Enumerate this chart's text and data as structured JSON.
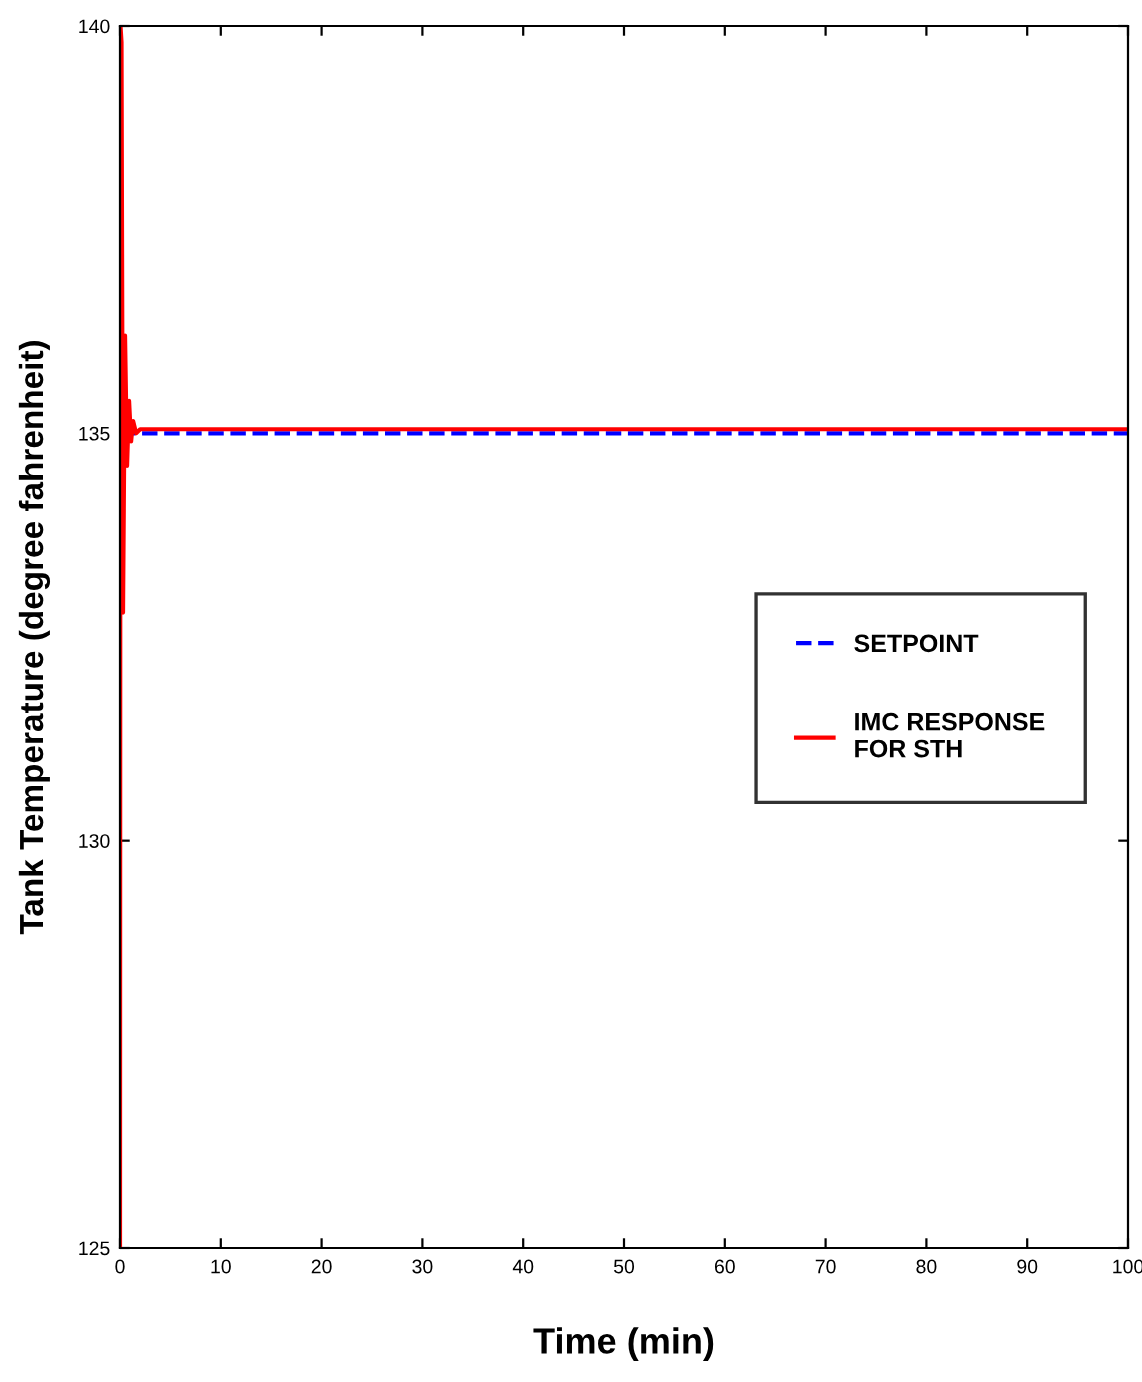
{
  "chart_data": {
    "type": "line",
    "xlabel": "Time (min)",
    "ylabel": "Tank Temperature (degree fahrenheit)",
    "xlim": [
      0,
      100
    ],
    "ylim": [
      125,
      140
    ],
    "xticks": [
      0,
      10,
      20,
      30,
      40,
      50,
      60,
      70,
      80,
      90,
      100
    ],
    "yticks": [
      125,
      130,
      135,
      140
    ],
    "grid": false,
    "legend": "right",
    "series": [
      {
        "name": "SETPOINT",
        "color": "#0000ff",
        "line_style": "dashed",
        "x": [
          0,
          100
        ],
        "values": [
          135,
          135
        ]
      },
      {
        "name": "IMC RESPONSE\nFOR STH",
        "color": "#ff0000",
        "line_style": "solid",
        "x": [
          0,
          0.05,
          0.15,
          0.3,
          0.5,
          0.7,
          0.9,
          1.1,
          1.3,
          1.6,
          2,
          100
        ],
        "values": [
          125,
          140,
          139.8,
          132.8,
          136.2,
          134.6,
          135.4,
          134.9,
          135.15,
          135.0,
          135.05,
          135.05
        ]
      }
    ]
  }
}
